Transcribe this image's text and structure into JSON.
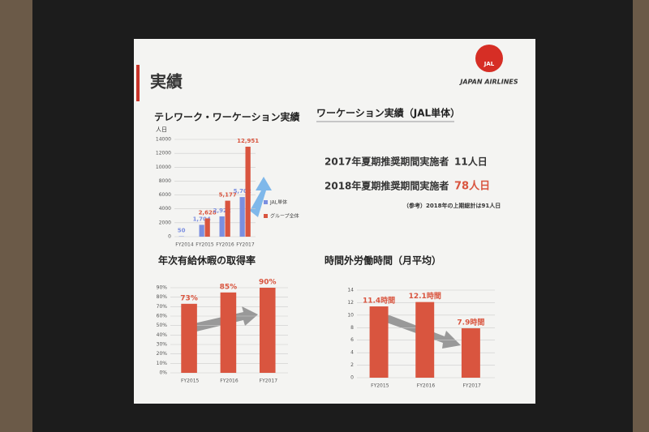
{
  "slide": {
    "title": "実績",
    "logo": {
      "mark": "JAL",
      "name": "JAPAN AIRLINES"
    }
  },
  "workation": {
    "title": "ワーケーション実績（JAL単体）",
    "rows": [
      {
        "label": "2017年夏期推奨期間実施者",
        "value": "11人日"
      },
      {
        "label": "2018年夏期推奨期間実施者",
        "value": "78人日"
      }
    ],
    "note": "（参考）2018年の上期総計は91人日"
  },
  "chart_data": [
    {
      "type": "bar",
      "title": "テレワーク・ワーケーション実績",
      "y_label": "人日",
      "categories": [
        "FY2014",
        "FY2015",
        "FY2016",
        "FY2017"
      ],
      "series": [
        {
          "name": "JAL単体",
          "color": "#7b8fe0",
          "values": [
            50,
            1704,
            2922,
            5702
          ],
          "value_labels": [
            "50",
            "1,704",
            "2,922",
            "5,702"
          ]
        },
        {
          "name": "グループ全体",
          "color": "#d9553f",
          "values": [
            null,
            2628,
            5177,
            12951
          ],
          "value_labels": [
            null,
            "2,628",
            "5,177",
            "12,951"
          ]
        }
      ],
      "ylim": [
        0,
        14000
      ],
      "yticks": [
        0,
        2000,
        4000,
        6000,
        8000,
        10000,
        12000,
        14000
      ],
      "grid": true
    },
    {
      "type": "bar",
      "title": "年次有給休暇の取得率",
      "categories": [
        "FY2015",
        "FY2016",
        "FY2017"
      ],
      "values": [
        73,
        85,
        90
      ],
      "value_labels": [
        "73%",
        "85%",
        "90%"
      ],
      "color": "#d9553f",
      "ylim": [
        0,
        90
      ],
      "yticks": [
        {
          "value": 0,
          "label": "0%"
        },
        {
          "value": 10,
          "label": "10%"
        },
        {
          "value": 20,
          "label": "20%"
        },
        {
          "value": 30,
          "label": "30%"
        },
        {
          "value": 40,
          "label": "40%"
        },
        {
          "value": 50,
          "label": "50%"
        },
        {
          "value": 60,
          "label": "60%"
        },
        {
          "value": 70,
          "label": "70%"
        },
        {
          "value": 80,
          "label": "80%"
        },
        {
          "value": 90,
          "label": "90%"
        }
      ],
      "grid": true
    },
    {
      "type": "bar",
      "title": "時間外労働時間（月平均）",
      "categories": [
        "FY2015",
        "FY2016",
        "FY2017"
      ],
      "values": [
        11.4,
        12.1,
        7.9
      ],
      "value_labels": [
        "11.4時間",
        "12.1時間",
        "7.9時間"
      ],
      "color": "#d9553f",
      "ylim": [
        0,
        14
      ],
      "yticks": [
        0,
        2,
        4,
        6,
        8,
        10,
        12,
        14
      ],
      "grid": true
    }
  ]
}
